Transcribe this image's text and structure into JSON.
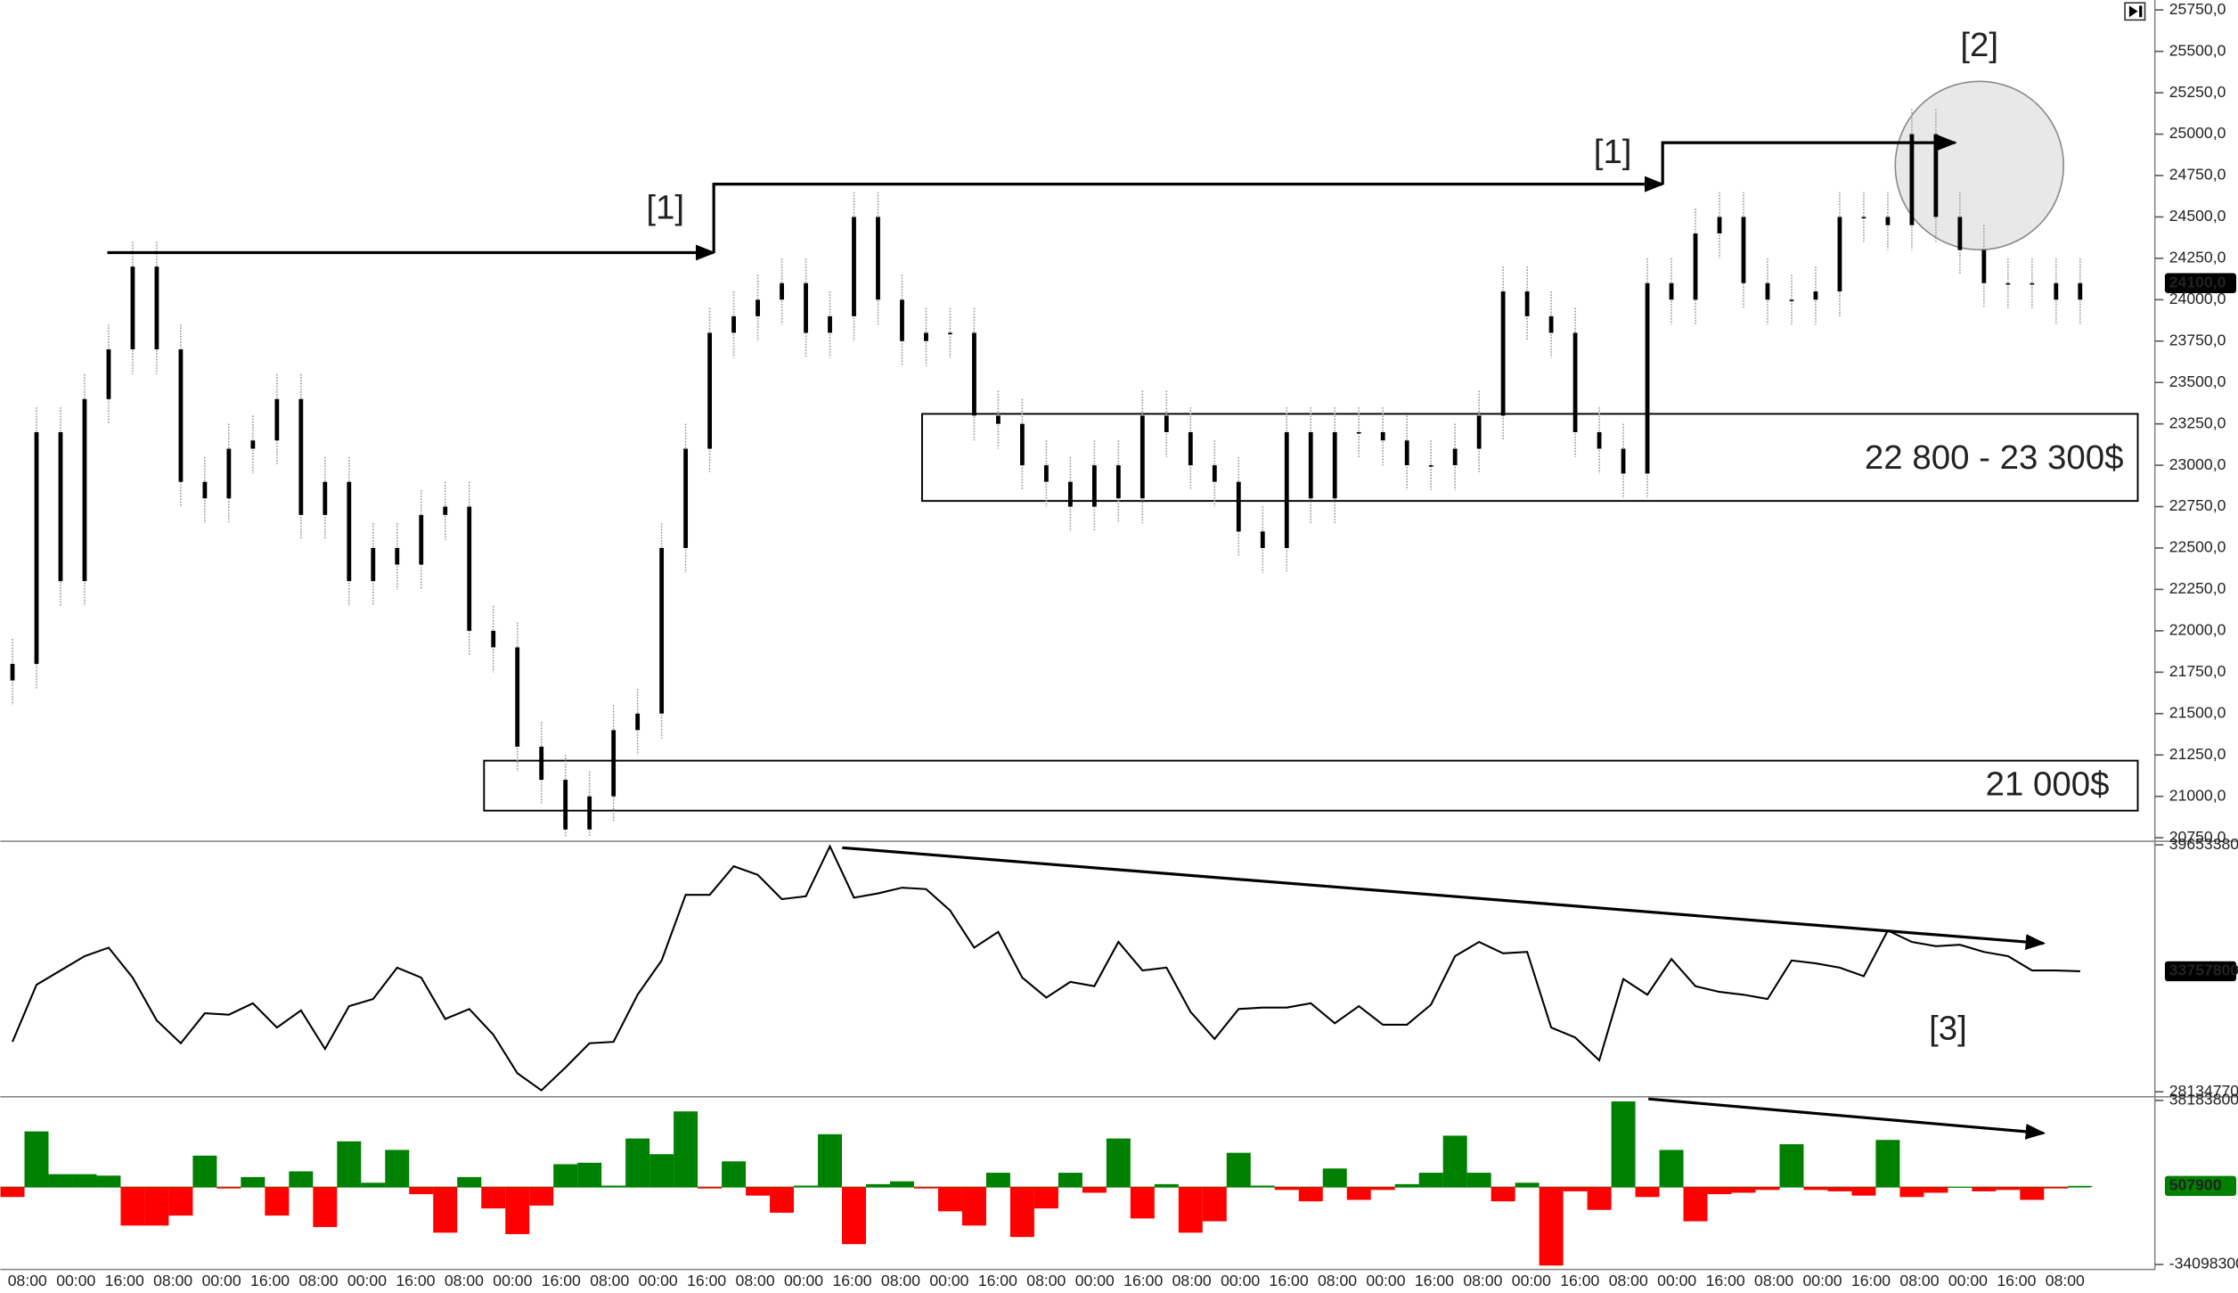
{
  "chart_data": [
    {
      "type": "candlestick",
      "ylim": [
        20750,
        25750
      ],
      "yticks": [
        {
          "value": 20750,
          "label": "20750,0"
        },
        {
          "value": 21000,
          "label": "21000,0"
        },
        {
          "value": 21250,
          "label": "21250,0"
        },
        {
          "value": 21500,
          "label": "21500,0"
        },
        {
          "value": 21750,
          "label": "21750,0"
        },
        {
          "value": 22000,
          "label": "22000,0"
        },
        {
          "value": 22250,
          "label": "22250,0"
        },
        {
          "value": 22500,
          "label": "22500,0"
        },
        {
          "value": 22750,
          "label": "22750,0"
        },
        {
          "value": 23000,
          "label": "23000,0"
        },
        {
          "value": 23250,
          "label": "23250,0"
        },
        {
          "value": 23500,
          "label": "23500,0"
        },
        {
          "value": 23750,
          "label": "23750,0"
        },
        {
          "value": 24000,
          "label": "24000,0"
        },
        {
          "value": 24250,
          "label": "24250,0"
        },
        {
          "value": 24500,
          "label": "24500,0"
        },
        {
          "value": 24750,
          "label": "24750,0"
        },
        {
          "value": 25000,
          "label": "25000,0"
        },
        {
          "value": 25250,
          "label": "25250,0"
        },
        {
          "value": 25500,
          "label": "25500,0"
        },
        {
          "value": 25750,
          "label": "25750,0"
        }
      ],
      "last": {
        "value": 24100,
        "label": "24100,0"
      },
      "annotations": [
        "[1]",
        "[1]",
        "[2]",
        "22 800 - 23 300$",
        "21 000$"
      ],
      "color": "#000000",
      "open": [
        21700,
        21800,
        23200,
        22300,
        23400,
        23700,
        24200,
        23700,
        22900,
        22800,
        23100,
        23150,
        23400,
        22700,
        22900,
        22300,
        22500,
        22400,
        22700,
        22750,
        22000,
        21900,
        21300,
        21100,
        20800,
        21000,
        21400,
        21500,
        22500,
        23100,
        23800,
        23900,
        24000,
        24100,
        23800,
        23900,
        24500,
        24000,
        23750,
        23800,
        23800,
        23300,
        23250,
        23000,
        22900,
        22750,
        23000,
        22800,
        23300,
        23200,
        23000,
        22900,
        22600,
        22500,
        23200,
        22800,
        23200,
        23200,
        23150,
        23000,
        23000,
        23100,
        23300,
        24050,
        23900,
        23800,
        23200,
        23100,
        22950,
        24100,
        24000,
        24400,
        24500,
        24100,
        24000,
        24000,
        24050,
        24500,
        24500,
        24450,
        25000,
        24500,
        24300,
        24100,
        24100,
        24100,
        24000
      ],
      "high": [
        21950,
        23350,
        23350,
        23550,
        23850,
        24350,
        24350,
        23850,
        23050,
        23250,
        23300,
        23550,
        23550,
        23050,
        23050,
        22650,
        22650,
        22850,
        22900,
        22900,
        22150,
        22050,
        21450,
        21250,
        21150,
        21550,
        21650,
        22650,
        23250,
        23950,
        24050,
        24150,
        24250,
        24250,
        24050,
        24650,
        24650,
        24150,
        23950,
        23950,
        23950,
        23450,
        23400,
        23150,
        23050,
        23150,
        23150,
        23450,
        23450,
        23350,
        23150,
        23050,
        22750,
        23350,
        23350,
        23350,
        23350,
        23350,
        23300,
        23150,
        23250,
        23450,
        24200,
        24200,
        24050,
        23950,
        23350,
        23250,
        24250,
        24250,
        24550,
        24650,
        24650,
        24250,
        24150,
        24200,
        24650,
        24650,
        24650,
        25150,
        25150,
        24650,
        24450,
        24250,
        24250,
        24250,
        24250
      ],
      "low": [
        21550,
        21650,
        22150,
        22150,
        23250,
        23550,
        23550,
        22750,
        22650,
        22650,
        22950,
        23000,
        22550,
        22550,
        22150,
        22150,
        22250,
        22250,
        22550,
        21850,
        21750,
        21150,
        20950,
        20750,
        20760,
        20850,
        21250,
        21350,
        22350,
        22950,
        23650,
        23750,
        23850,
        23650,
        23650,
        23750,
        23850,
        23600,
        23600,
        23650,
        23150,
        23100,
        22850,
        22750,
        22600,
        22600,
        22650,
        22650,
        23050,
        22850,
        22750,
        22450,
        22350,
        22350,
        22650,
        22650,
        23050,
        23000,
        22850,
        22850,
        22850,
        22950,
        23150,
        23750,
        23650,
        23050,
        22950,
        22800,
        22800,
        23850,
        23850,
        24250,
        23950,
        23850,
        23850,
        23850,
        23900,
        24350,
        24300,
        24300,
        24350,
        24150,
        23950,
        23950,
        23950,
        23850,
        23850
      ],
      "close": [
        21800,
        23200,
        22300,
        23400,
        23700,
        24200,
        23700,
        22900,
        22800,
        23100,
        23150,
        23400,
        22700,
        22900,
        22300,
        22500,
        22400,
        22700,
        22750,
        22000,
        21900,
        21300,
        21100,
        20800,
        21000,
        21400,
        21500,
        22500,
        23100,
        23800,
        23900,
        24000,
        24100,
        23800,
        23900,
        24500,
        24000,
        23750,
        23800,
        23800,
        23300,
        23250,
        23000,
        22900,
        22750,
        23000,
        22800,
        23300,
        23200,
        23000,
        22900,
        22600,
        22500,
        23200,
        22800,
        23200,
        23200,
        23150,
        23000,
        23000,
        23100,
        23300,
        24050,
        23900,
        23800,
        23200,
        23100,
        22950,
        24100,
        24000,
        24400,
        24500,
        24100,
        24000,
        24000,
        24050,
        24500,
        24500,
        24450,
        25000,
        24500,
        24300,
        24100,
        24100,
        24100,
        24000,
        24100
      ]
    },
    {
      "type": "line",
      "ylim": [
        28134770,
        39653380
      ],
      "yticks": [
        28134770,
        39653380
      ],
      "last": 33757800,
      "annotations": [
        "[3]"
      ],
      "color": "#000000",
      "values": [
        30465000,
        33128000,
        33794000,
        34460000,
        34859000,
        33461000,
        31464000,
        30398000,
        31797000,
        31730000,
        32263000,
        31131000,
        31930000,
        30132000,
        32130000,
        32463000,
        33927000,
        33461000,
        31530000,
        31996000,
        30798000,
        29000000,
        28201000,
        29267000,
        30398000,
        30465000,
        32662000,
        34260000,
        37323000,
        37323000,
        38655000,
        38255000,
        37123000,
        37256000,
        39587000,
        37190000,
        37390000,
        37656000,
        37589000,
        36591000,
        34859000,
        35592000,
        33461000,
        32529000,
        33262000,
        33062000,
        35126000,
        33794000,
        33927000,
        31863000,
        30598000,
        31996000,
        32063000,
        32063000,
        32263000,
        31331000,
        32130000,
        31264000,
        31264000,
        32196000,
        34460000,
        35126000,
        34593000,
        34660000,
        31131000,
        30665000,
        29600000,
        33395000,
        32662000,
        34327000,
        33062000,
        32795000,
        32662000,
        32463000,
        34260000,
        34127000,
        33927000,
        33528000,
        35658000,
        35126000,
        34926000,
        34993000,
        34660000,
        34460000,
        33794000,
        33794000,
        33757800
      ]
    },
    {
      "type": "bar",
      "ylim": [
        -34098300,
        38183800
      ],
      "yticks": [
        -34098300,
        38183800
      ],
      "last": 507900,
      "colors": {
        "positive": "#008000",
        "negative": "#ff0000"
      },
      "x_labels": [
        "08:00",
        "00:00",
        "16:00",
        "08:00",
        "00:00",
        "16:00",
        "08:00",
        "00:00",
        "16:00",
        "08:00",
        "00:00",
        "16:00",
        "08:00",
        "00:00",
        "16:00",
        "08:00",
        "00:00",
        "16:00",
        "08:00",
        "00:00",
        "16:00",
        "08:00",
        "00:00",
        "16:00",
        "08:00",
        "00:00",
        "16:00",
        "08:00",
        "00:00",
        "16:00",
        "08:00",
        "00:00",
        "16:00",
        "08:00",
        "00:00",
        "16:00",
        "08:00",
        "00:00",
        "16:00",
        "08:00",
        "00:00",
        "16:00",
        "08:00"
      ],
      "values": [
        -4400000,
        24510000,
        5660000,
        5660000,
        5030000,
        -16970000,
        -16970000,
        -12570000,
        13830000,
        -630000,
        4400000,
        -12570000,
        6910000,
        -17600000,
        20110000,
        1890000,
        16340000,
        -3140000,
        -20110000,
        4400000,
        -9430000,
        -20740000,
        -8170000,
        10060000,
        10690000,
        630000,
        21370000,
        14460000,
        33310000,
        -630000,
        11310000,
        -3770000,
        -11310000,
        630000,
        23260000,
        -25140000,
        1260000,
        2510000,
        -630000,
        -10690000,
        -16970000,
        6290000,
        -22000000,
        -9430000,
        6290000,
        -2510000,
        21370000,
        -13830000,
        1260000,
        -20110000,
        -15090000,
        15090000,
        630000,
        -1260000,
        -6290000,
        8170000,
        -5660000,
        -1260000,
        1260000,
        6290000,
        22630000,
        6290000,
        -6290000,
        1890000,
        -34570000,
        -1890000,
        -10060000,
        37710000,
        -4400000,
        16340000,
        -15090000,
        -3140000,
        -2510000,
        -1260000,
        18860000,
        -1260000,
        -1890000,
        -3770000,
        20740000,
        -4400000,
        -2510000,
        0,
        -1890000,
        -1260000,
        -5660000,
        -630000,
        507900
      ]
    }
  ]
}
